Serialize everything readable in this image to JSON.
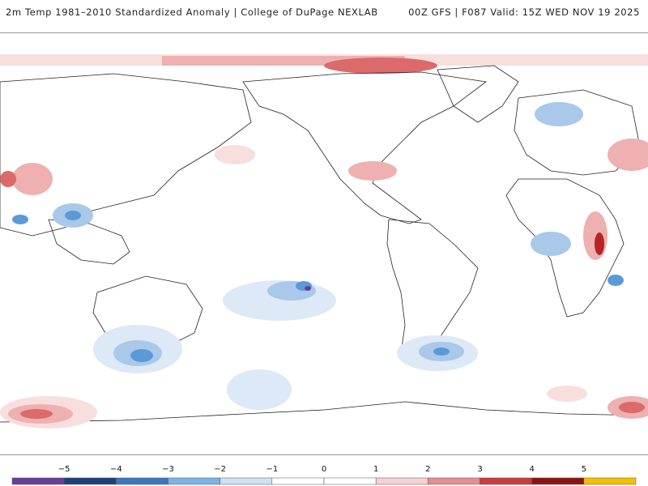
{
  "header": {
    "title": "2m Temp 1981–2010 Standardized Anomaly | College of DuPage NEXLAB",
    "model_info": "00Z GFS | F087 Valid: 15Z WED NOV 19 2025"
  },
  "colorbar": {
    "ticks": [
      "−5",
      "−4",
      "−3",
      "−2",
      "−1",
      "0",
      "1",
      "2",
      "3",
      "4",
      "5"
    ],
    "colors": [
      "#6a3d9a",
      "#1f3f7a",
      "#3a78c4",
      "#7fb2e4",
      "#cfe1f3",
      "#ffffff",
      "#ffffff",
      "#f6d2d2",
      "#e48f8f",
      "#cc3b3b",
      "#8f1212",
      "#f4c000"
    ]
  },
  "palette": {
    "cold1": "#dde9f6",
    "cold2": "#a9c8ea",
    "cold3": "#5b9ad8",
    "cold4": "#2f5fa8",
    "cold5": "#6a3d9a",
    "warm1": "#f9dede",
    "warm2": "#eeb0b0",
    "warm3": "#dc6a6a",
    "warm4": "#b52424",
    "coast": "#222222"
  }
}
